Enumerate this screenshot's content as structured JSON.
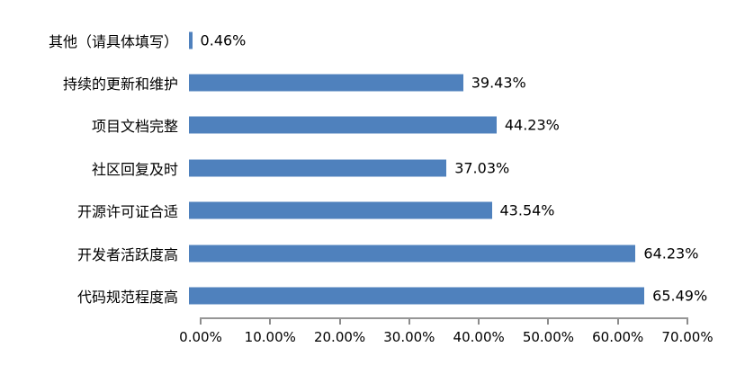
{
  "chart_data": {
    "type": "bar",
    "orientation": "horizontal",
    "title": "",
    "xlabel": "",
    "ylabel": "",
    "categories": [
      "其他（请具体填写）",
      "持续的更新和维护",
      "项目文档完整",
      "社区回复及时",
      "开源许可证合适",
      "开发者活跃度高",
      "代码规范程度高"
    ],
    "values": [
      0.46,
      39.43,
      44.23,
      37.03,
      43.54,
      64.23,
      65.49
    ],
    "value_labels": [
      "0.46%",
      "39.43%",
      "44.23%",
      "37.03%",
      "43.54%",
      "64.23%",
      "65.49%"
    ],
    "x_tick_labels": [
      "0.00%",
      "10.00%",
      "20.00%",
      "30.00%",
      "40.00%",
      "50.00%",
      "60.00%",
      "70.00%"
    ],
    "x_tick_values": [
      0,
      10,
      20,
      30,
      40,
      50,
      60,
      70
    ],
    "xlim": [
      0,
      70
    ],
    "grid": false,
    "legend": null,
    "bar_color": "#4F81BD",
    "axis_color": "#969696",
    "text_color": "#000000"
  }
}
